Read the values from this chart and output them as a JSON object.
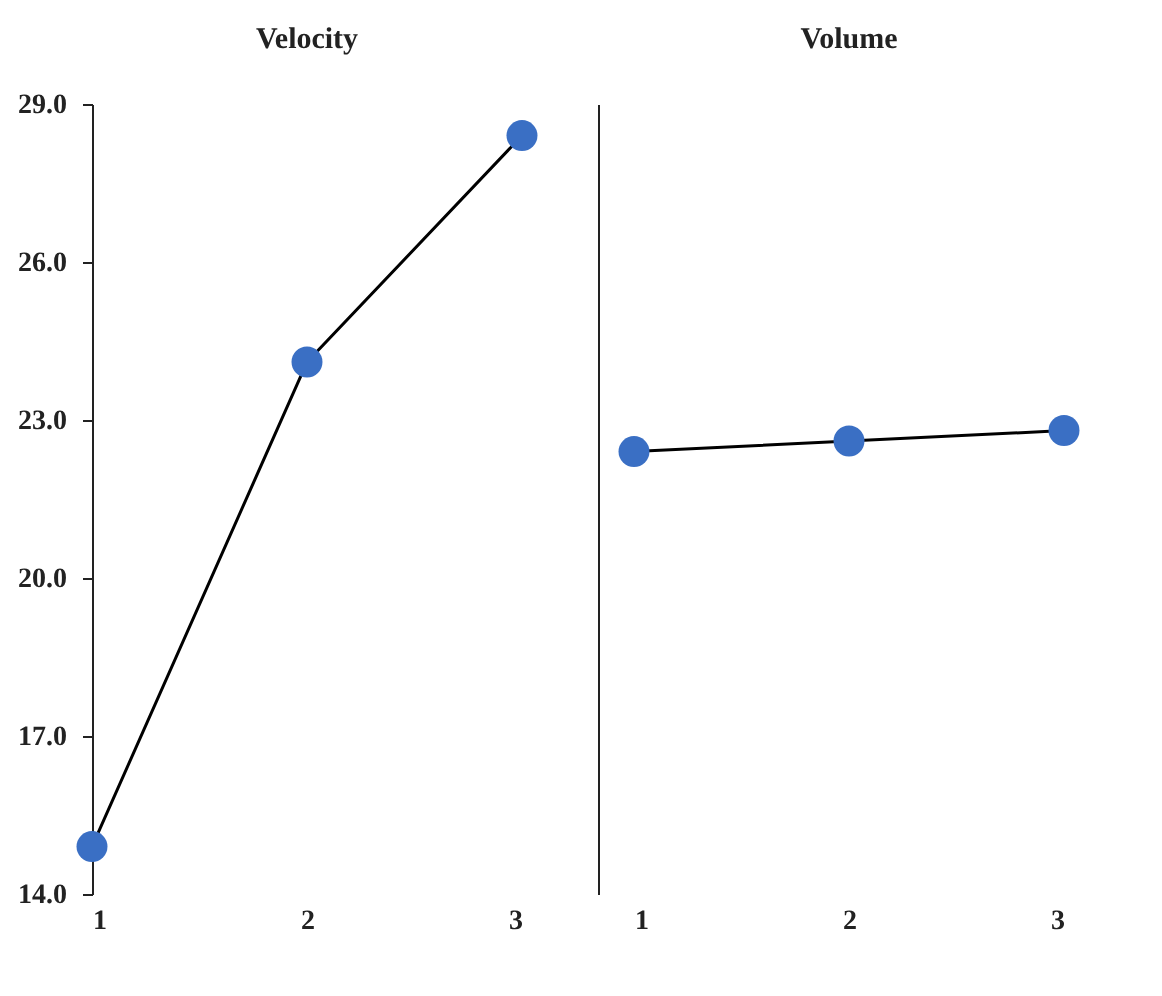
{
  "chart_data": [
    {
      "type": "line",
      "title": "Velocity",
      "x": [
        1,
        2,
        3
      ],
      "xlim": [
        1,
        3
      ],
      "xticks": [
        1,
        2,
        3
      ],
      "ylim": [
        14,
        29
      ],
      "yticks": [
        {
          "value": 14,
          "label": "14.0"
        },
        {
          "value": 17,
          "label": "17.0"
        },
        {
          "value": 20,
          "label": "20.0"
        },
        {
          "value": 23,
          "label": "23.0"
        },
        {
          "value": 26,
          "label": "26.0"
        },
        {
          "value": 29,
          "label": "29.0"
        }
      ],
      "marker": "circle",
      "grid": false,
      "series": [
        {
          "color": "#3a6fc4",
          "values": [
            14.9,
            24.1,
            28.4
          ]
        }
      ]
    },
    {
      "type": "line",
      "title": "Volume",
      "x": [
        1,
        2,
        3
      ],
      "xlim": [
        1,
        3
      ],
      "xticks": [
        1,
        2,
        3
      ],
      "ylim": [
        14,
        29
      ],
      "tick_labels": "x",
      "marker": "circle",
      "grid": false,
      "series": [
        {
          "color": "#3a6fc4",
          "values": [
            22.4,
            22.6,
            22.8
          ]
        }
      ]
    }
  ]
}
